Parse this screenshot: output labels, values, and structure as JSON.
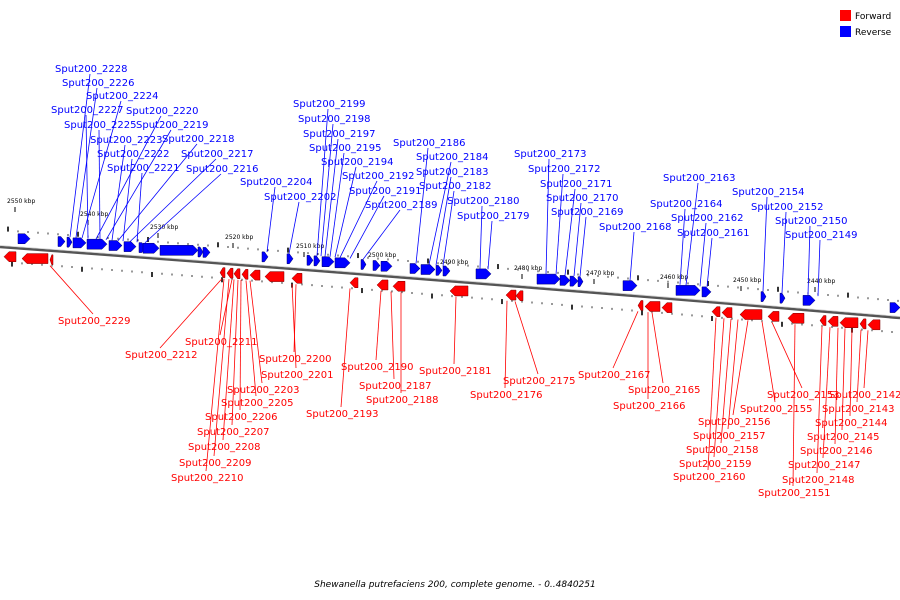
{
  "legend": [
    {
      "label": "Forward",
      "color": "#ff0000"
    },
    {
      "label": "Reverse",
      "color": "#0000ff"
    }
  ],
  "caption": "Shewanella putrefaciens 200, complete genome. - 0..4840251",
  "colors": {
    "forward": "#ff0000",
    "reverse": "#0000ff",
    "backbone": "#555555"
  },
  "kbp_labels": [
    "2550 kbp",
    "2540 kbp",
    "2530 kbp",
    "2520 kbp",
    "2510 kbp",
    "2500 kbp",
    "2490 kbp",
    "2480 kbp",
    "2470 kbp",
    "2460 kbp",
    "2450 kbp",
    "2440 kbp"
  ],
  "reverse_genes": [
    "Sput200_2228",
    "Sput200_2226",
    "Sput200_2224",
    "Sput200_2227",
    "Sput200_2220",
    "Sput200_2225",
    "Sput200_2219",
    "Sput200_2223",
    "Sput200_2218",
    "Sput200_2222",
    "Sput200_2217",
    "Sput200_2221",
    "Sput200_2216",
    "Sput200_2199",
    "Sput200_2198",
    "Sput200_2197",
    "Sput200_2195",
    "Sput200_2194",
    "Sput200_2192",
    "Sput200_2191",
    "Sput200_2189",
    "Sput200_2204",
    "Sput200_2202",
    "Sput200_2186",
    "Sput200_2184",
    "Sput200_2183",
    "Sput200_2182",
    "Sput200_2180",
    "Sput200_2179",
    "Sput200_2173",
    "Sput200_2172",
    "Sput200_2171",
    "Sput200_2170",
    "Sput200_2169",
    "Sput200_2168",
    "Sput200_2163",
    "Sput200_2164",
    "Sput200_2162",
    "Sput200_2161",
    "Sput200_2154",
    "Sput200_2152",
    "Sput200_2150",
    "Sput200_2149"
  ],
  "forward_genes": [
    "Sput200_2229",
    "Sput200_2212",
    "Sput200_2211",
    "Sput200_2200",
    "Sput200_2201",
    "Sput200_2203",
    "Sput200_2205",
    "Sput200_2206",
    "Sput200_2207",
    "Sput200_2208",
    "Sput200_2209",
    "Sput200_2210",
    "Sput200_2190",
    "Sput200_2187",
    "Sput200_2188",
    "Sput200_2193",
    "Sput200_2181",
    "Sput200_2175",
    "Sput200_2176",
    "Sput200_2167",
    "Sput200_2165",
    "Sput200_2166",
    "Sput200_2153",
    "Sput200_2155",
    "Sput200_2156",
    "Sput200_2157",
    "Sput200_2158",
    "Sput200_2159",
    "Sput200_2160",
    "Sput200_2142",
    "Sput200_2143",
    "Sput200_2144",
    "Sput200_2145",
    "Sput200_2146",
    "Sput200_2147",
    "Sput200_2148",
    "Sput200_2151"
  ]
}
